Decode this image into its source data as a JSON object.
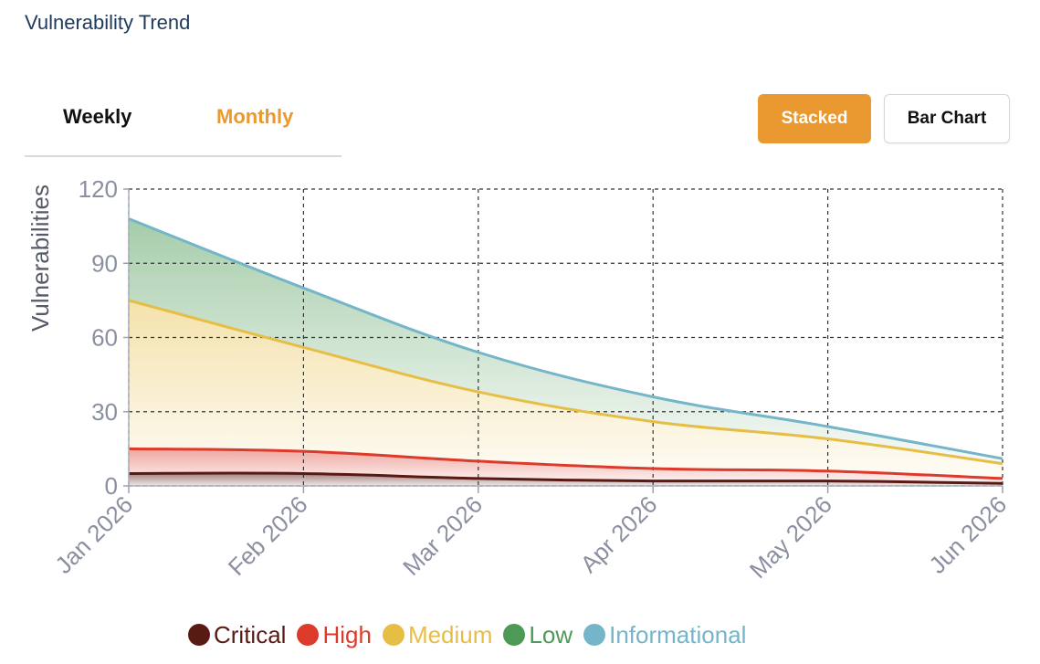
{
  "header": {
    "title": "Vulnerability Trend"
  },
  "tabs": [
    {
      "label": "Weekly",
      "active": false
    },
    {
      "label": "Monthly",
      "active": true
    }
  ],
  "buttons": {
    "stacked_label": "Stacked",
    "bar_chart_label": "Bar Chart"
  },
  "colors": {
    "accent": "#e9992f",
    "critical": "#5a1a14",
    "high": "#dc3b2b",
    "medium": "#e7be45",
    "low": "#4c9a55",
    "informational": "#74b5c9"
  },
  "chart_data": {
    "type": "area",
    "stacked": true,
    "ylabel": "Vulnerabilities",
    "xlabel": "",
    "categories": [
      "Jan 2026",
      "Feb 2026",
      "Mar 2026",
      "Apr 2026",
      "May 2026",
      "Jun 2026"
    ],
    "ylim": [
      0,
      120
    ],
    "yticks": [
      0,
      30,
      60,
      90,
      120
    ],
    "grid": true,
    "legend_position": "bottom",
    "series_cumulative": [
      {
        "name": "Critical",
        "values": [
          5,
          5,
          3,
          2,
          2,
          1
        ]
      },
      {
        "name": "High",
        "values": [
          15,
          14,
          10,
          7,
          6,
          3
        ]
      },
      {
        "name": "Medium",
        "values": [
          75,
          56,
          38,
          26,
          19,
          9
        ]
      },
      {
        "name": "Low",
        "values": [
          108,
          80,
          54,
          36,
          24,
          11
        ]
      },
      {
        "name": "Informational",
        "values": [
          108,
          80,
          54,
          36,
          24,
          11
        ]
      }
    ],
    "series": [
      {
        "name": "Critical",
        "values": [
          5,
          5,
          3,
          2,
          2,
          1
        ]
      },
      {
        "name": "High",
        "values": [
          10,
          9,
          7,
          5,
          4,
          2
        ]
      },
      {
        "name": "Medium",
        "values": [
          60,
          42,
          28,
          19,
          13,
          6
        ]
      },
      {
        "name": "Low",
        "values": [
          33,
          24,
          16,
          10,
          5,
          2
        ]
      },
      {
        "name": "Informational",
        "values": [
          0,
          0,
          0,
          0,
          0,
          0
        ]
      }
    ]
  },
  "legend": [
    {
      "label": "Critical",
      "color_key": "critical"
    },
    {
      "label": "High",
      "color_key": "high"
    },
    {
      "label": "Medium",
      "color_key": "medium"
    },
    {
      "label": "Low",
      "color_key": "low"
    },
    {
      "label": "Informational",
      "color_key": "informational"
    }
  ]
}
